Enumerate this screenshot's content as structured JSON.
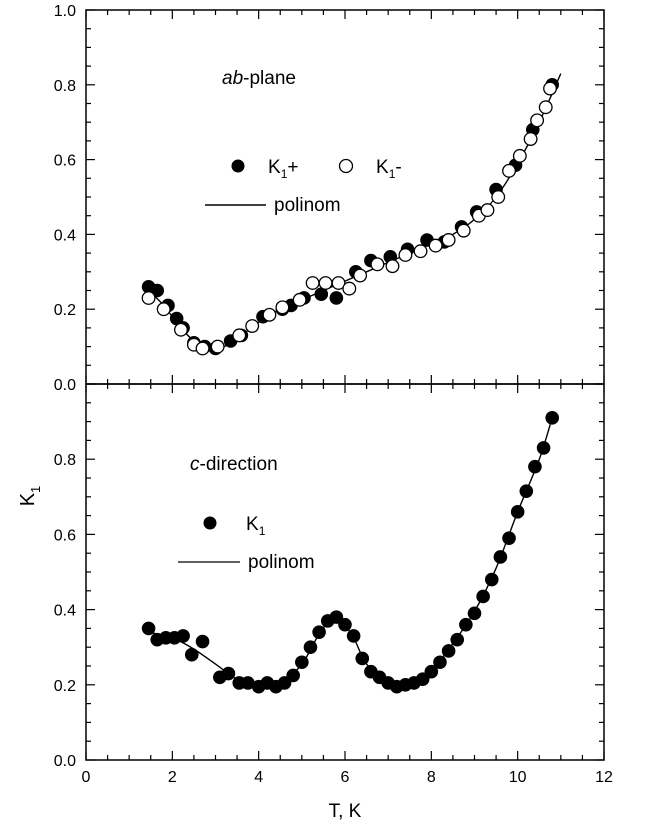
{
  "chart_data": [
    {
      "type": "scatter",
      "annotation_italic": "ab",
      "annotation_rest": "-plane",
      "xlim": [
        0,
        12
      ],
      "ylim": [
        0.0,
        1.0
      ],
      "xticks": [
        "0",
        "2",
        "4",
        "6",
        "8",
        "10",
        "12"
      ],
      "yticks": [
        "0.0",
        "0.2",
        "0.4",
        "0.6",
        "0.8",
        "1.0"
      ],
      "legend": {
        "entries": [
          {
            "marker": "filled-circle",
            "base": "K",
            "sub": "1",
            "suffix": "+"
          },
          {
            "marker": "open-circle",
            "base": "K",
            "sub": "1",
            "suffix": "-"
          },
          {
            "marker": "line",
            "label": "polinom"
          }
        ]
      },
      "series": [
        {
          "name": "K1+",
          "marker": "filled",
          "points": [
            [
              1.45,
              0.26
            ],
            [
              1.65,
              0.25
            ],
            [
              1.9,
              0.21
            ],
            [
              2.1,
              0.175
            ],
            [
              2.25,
              0.15
            ],
            [
              2.5,
              0.11
            ],
            [
              2.75,
              0.1
            ],
            [
              3.0,
              0.095
            ],
            [
              3.35,
              0.115
            ],
            [
              3.6,
              0.13
            ],
            [
              4.1,
              0.18
            ],
            [
              4.55,
              0.2
            ],
            [
              4.75,
              0.21
            ],
            [
              5.05,
              0.23
            ],
            [
              5.45,
              0.24
            ],
            [
              5.8,
              0.23
            ],
            [
              6.25,
              0.3
            ],
            [
              6.6,
              0.33
            ],
            [
              7.05,
              0.34
            ],
            [
              7.45,
              0.36
            ],
            [
              7.9,
              0.385
            ],
            [
              8.3,
              0.38
            ],
            [
              8.7,
              0.42
            ],
            [
              9.05,
              0.46
            ],
            [
              9.5,
              0.52
            ],
            [
              9.95,
              0.585
            ],
            [
              10.35,
              0.68
            ],
            [
              10.8,
              0.8
            ]
          ]
        },
        {
          "name": "K1-",
          "marker": "open",
          "points": [
            [
              1.45,
              0.23
            ],
            [
              1.8,
              0.2
            ],
            [
              2.2,
              0.145
            ],
            [
              2.5,
              0.105
            ],
            [
              2.7,
              0.095
            ],
            [
              3.05,
              0.1
            ],
            [
              3.55,
              0.13
            ],
            [
              3.85,
              0.155
            ],
            [
              4.25,
              0.185
            ],
            [
              4.55,
              0.205
            ],
            [
              4.95,
              0.225
            ],
            [
              5.25,
              0.27
            ],
            [
              5.55,
              0.27
            ],
            [
              5.85,
              0.27
            ],
            [
              6.1,
              0.255
            ],
            [
              6.35,
              0.29
            ],
            [
              6.75,
              0.32
            ],
            [
              7.1,
              0.315
            ],
            [
              7.4,
              0.345
            ],
            [
              7.75,
              0.355
            ],
            [
              8.1,
              0.37
            ],
            [
              8.4,
              0.385
            ],
            [
              8.75,
              0.41
            ],
            [
              9.1,
              0.45
            ],
            [
              9.3,
              0.465
            ],
            [
              9.55,
              0.5
            ],
            [
              9.8,
              0.57
            ],
            [
              10.05,
              0.61
            ],
            [
              10.3,
              0.655
            ],
            [
              10.45,
              0.705
            ],
            [
              10.65,
              0.74
            ],
            [
              10.75,
              0.79
            ]
          ]
        },
        {
          "name": "polinom",
          "marker": "line",
          "points": [
            [
              1.45,
              0.25
            ],
            [
              1.8,
              0.21
            ],
            [
              2.2,
              0.15
            ],
            [
              2.6,
              0.105
            ],
            [
              2.9,
              0.095
            ],
            [
              3.2,
              0.1
            ],
            [
              3.6,
              0.13
            ],
            [
              4.0,
              0.165
            ],
            [
              4.5,
              0.2
            ],
            [
              5.0,
              0.225
            ],
            [
              5.5,
              0.25
            ],
            [
              6.0,
              0.275
            ],
            [
              6.5,
              0.3
            ],
            [
              7.0,
              0.325
            ],
            [
              7.5,
              0.35
            ],
            [
              8.0,
              0.375
            ],
            [
              8.5,
              0.4
            ],
            [
              9.0,
              0.44
            ],
            [
              9.5,
              0.5
            ],
            [
              10.0,
              0.59
            ],
            [
              10.5,
              0.7
            ],
            [
              11.0,
              0.83
            ]
          ]
        }
      ]
    },
    {
      "type": "scatter",
      "annotation_italic": "c",
      "annotation_rest": "-direction",
      "xlabel": "T, K",
      "ylabel_base": "K",
      "ylabel_sub": "1",
      "xlim": [
        0,
        12
      ],
      "ylim": [
        0.0,
        1.0
      ],
      "xticks": [
        "0",
        "2",
        "4",
        "6",
        "8",
        "10",
        "12"
      ],
      "yticks": [
        "0.0",
        "0.2",
        "0.4",
        "0.6",
        "0.8"
      ],
      "legend": {
        "entries": [
          {
            "marker": "filled-circle",
            "base": "K",
            "sub": "1",
            "suffix": ""
          },
          {
            "marker": "line",
            "label": "polinom"
          }
        ]
      },
      "series": [
        {
          "name": "K1",
          "marker": "filled",
          "points": [
            [
              1.45,
              0.35
            ],
            [
              1.65,
              0.32
            ],
            [
              1.85,
              0.325
            ],
            [
              2.05,
              0.325
            ],
            [
              2.25,
              0.33
            ],
            [
              2.45,
              0.28
            ],
            [
              2.7,
              0.315
            ],
            [
              3.1,
              0.22
            ],
            [
              3.3,
              0.23
            ],
            [
              3.55,
              0.205
            ],
            [
              3.75,
              0.205
            ],
            [
              4.0,
              0.195
            ],
            [
              4.2,
              0.205
            ],
            [
              4.4,
              0.195
            ],
            [
              4.6,
              0.205
            ],
            [
              4.8,
              0.225
            ],
            [
              5.0,
              0.26
            ],
            [
              5.2,
              0.3
            ],
            [
              5.4,
              0.34
            ],
            [
              5.6,
              0.37
            ],
            [
              5.8,
              0.38
            ],
            [
              6.0,
              0.36
            ],
            [
              6.2,
              0.33
            ],
            [
              6.4,
              0.27
            ],
            [
              6.6,
              0.235
            ],
            [
              6.8,
              0.22
            ],
            [
              7.0,
              0.205
            ],
            [
              7.2,
              0.195
            ],
            [
              7.4,
              0.2
            ],
            [
              7.6,
              0.205
            ],
            [
              7.8,
              0.215
            ],
            [
              8.0,
              0.235
            ],
            [
              8.2,
              0.26
            ],
            [
              8.4,
              0.29
            ],
            [
              8.6,
              0.32
            ],
            [
              8.8,
              0.36
            ],
            [
              9.0,
              0.39
            ],
            [
              9.2,
              0.435
            ],
            [
              9.4,
              0.48
            ],
            [
              9.6,
              0.54
            ],
            [
              9.8,
              0.59
            ],
            [
              10.0,
              0.66
            ],
            [
              10.2,
              0.715
            ],
            [
              10.4,
              0.78
            ],
            [
              10.6,
              0.83
            ],
            [
              10.8,
              0.91
            ]
          ]
        },
        {
          "name": "polinom",
          "marker": "line",
          "points": [
            [
              1.45,
              0.34
            ],
            [
              2.0,
              0.325
            ],
            [
              2.5,
              0.295
            ],
            [
              3.0,
              0.255
            ],
            [
              3.5,
              0.215
            ],
            [
              4.0,
              0.2
            ],
            [
              4.5,
              0.205
            ],
            [
              5.0,
              0.255
            ],
            [
              5.4,
              0.335
            ],
            [
              5.7,
              0.375
            ],
            [
              5.9,
              0.37
            ],
            [
              6.2,
              0.325
            ],
            [
              6.5,
              0.255
            ],
            [
              7.0,
              0.205
            ],
            [
              7.3,
              0.195
            ],
            [
              7.7,
              0.21
            ],
            [
              8.0,
              0.235
            ],
            [
              8.5,
              0.31
            ],
            [
              9.0,
              0.395
            ],
            [
              9.5,
              0.51
            ],
            [
              10.0,
              0.66
            ],
            [
              10.5,
              0.8
            ],
            [
              10.8,
              0.91
            ]
          ]
        }
      ]
    }
  ]
}
